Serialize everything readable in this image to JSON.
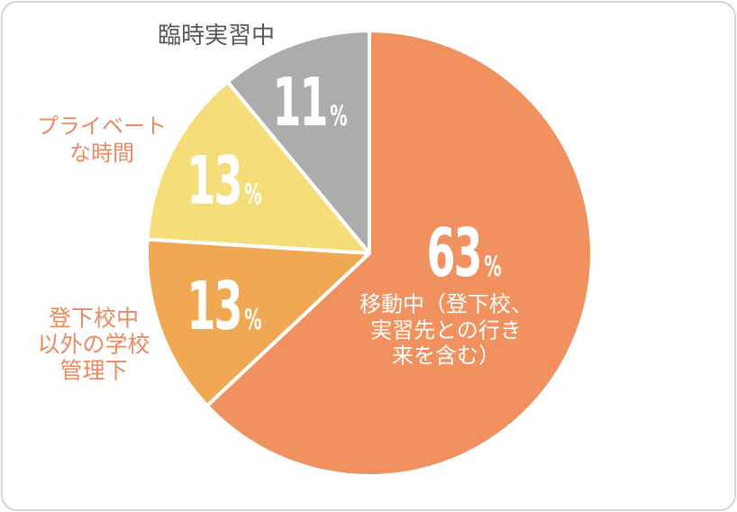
{
  "page": {
    "background_color": "#FFFFFF",
    "border_color": "#D4D4D4"
  },
  "chart_data": {
    "type": "pie",
    "title": "",
    "unit": "%",
    "categories": [
      "移動中（登下校、実習先との行き来を含む）",
      "登下校中以外の学校管理下",
      "プライベートな時間",
      "臨時実習中"
    ],
    "values": [
      63,
      13,
      13,
      11
    ],
    "colors": [
      "#F0915F",
      "#F0A852",
      "#F5DE7A",
      "#ADACAD"
    ],
    "start_angle_deg": 0,
    "direction": "clockwise",
    "legend_position": "none",
    "slices": [
      {
        "name": "moving",
        "value": 63,
        "unit": "%",
        "color": "#F0915F",
        "label_color": "#FFFFFF",
        "label_placement": "inside",
        "label_lines": [
          "移動中（登下校、",
          "実習先との行き",
          "来を含む）"
        ]
      },
      {
        "name": "school-managed-outside-commute",
        "value": 13,
        "unit": "%",
        "color": "#F0A852",
        "label_color": "#E98A62",
        "label_placement": "outside-left",
        "label_lines": [
          "登下校中",
          "以外の学校",
          "管理下"
        ]
      },
      {
        "name": "private-time",
        "value": 13,
        "unit": "%",
        "color": "#F5DE7A",
        "label_color": "#E98A62",
        "label_placement": "outside-left",
        "label_lines": [
          "プライベート",
          "な時間"
        ]
      },
      {
        "name": "temporary-internship",
        "value": 11,
        "unit": "%",
        "color": "#ADACAD",
        "label_color": "#595757",
        "label_placement": "outside-top",
        "label_lines": [
          "臨時実習中"
        ]
      }
    ]
  }
}
